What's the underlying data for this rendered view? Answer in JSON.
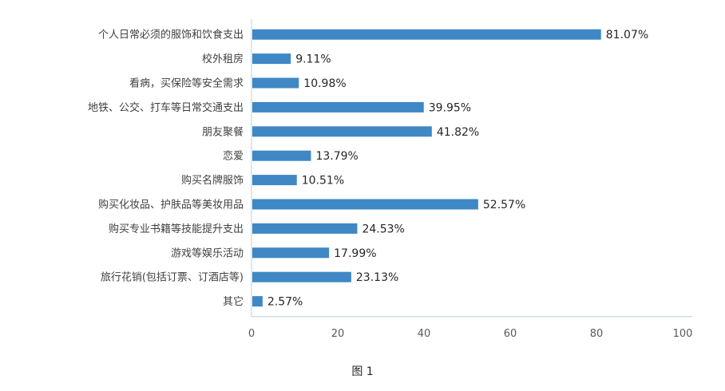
{
  "caption": "图 1",
  "chart_data": {
    "type": "bar",
    "orientation": "horizontal",
    "categories": [
      "个人日常必须的服饰和饮食支出",
      "校外租房",
      "看病，买保险等安全需求",
      "地铁、公交、打车等日常交通支出",
      "朋友聚餐",
      "恋爱",
      "购买名牌服饰",
      "购买化妆品、护肤品等美妆用品",
      "购买专业书籍等技能提升支出",
      "游戏等娱乐活动",
      "旅行花销(包括订票、订酒店等)",
      "其它"
    ],
    "values": [
      81.07,
      9.11,
      10.98,
      39.95,
      41.82,
      13.79,
      10.51,
      52.57,
      24.53,
      17.99,
      23.13,
      2.57
    ],
    "data_labels": [
      "81.07%",
      "9.11%",
      "10.98%",
      "39.95%",
      "41.82%",
      "13.79%",
      "10.51%",
      "52.57%",
      "24.53%",
      "17.99%",
      "23.13%",
      "2.57%"
    ],
    "xlim": [
      0,
      100
    ],
    "x_ticks": [
      0,
      20,
      40,
      60,
      80,
      100
    ],
    "x_tick_labels": [
      "0",
      "20",
      "40",
      "60",
      "80",
      "100"
    ],
    "grid": false,
    "legend": "none",
    "bar_color": "#3f88c5",
    "axis_color": "#b8cfe0"
  }
}
